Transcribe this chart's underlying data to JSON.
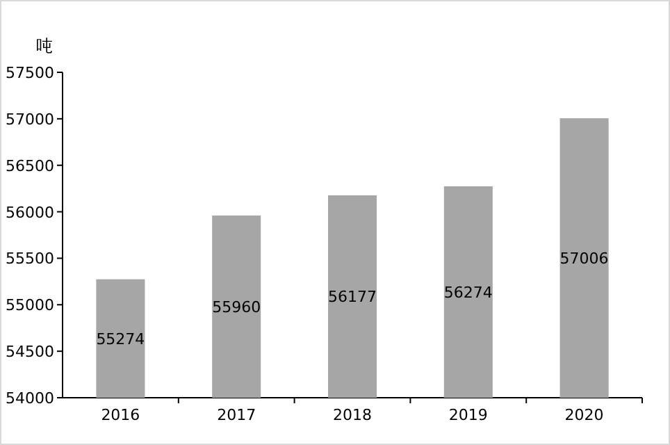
{
  "chart_data": {
    "type": "bar",
    "ylabel": "吨",
    "categories": [
      "2016",
      "2017",
      "2018",
      "2019",
      "2020"
    ],
    "values": [
      55274,
      55960,
      56177,
      56274,
      57006
    ],
    "color": "#a6a6a6",
    "ylim": [
      54000,
      57500
    ],
    "yticks": [
      54000,
      54500,
      55000,
      55500,
      56000,
      56500,
      57000,
      57500
    ],
    "data_labels": true
  }
}
